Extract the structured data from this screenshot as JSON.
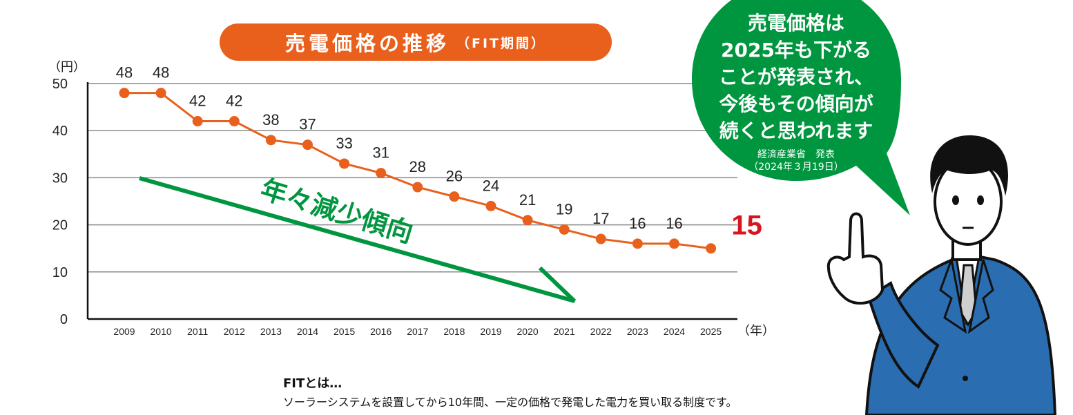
{
  "header": {
    "title": "売電価格の推移",
    "subtitle": "（FIT期間）"
  },
  "chart_data": {
    "type": "line",
    "title": "売電価格の推移（FIT期間）",
    "ylabel": "（円）",
    "xlabel": "（年）",
    "ylim": [
      0,
      50
    ],
    "yticks": [
      "0",
      "10",
      "20",
      "30",
      "40",
      "50"
    ],
    "categories": [
      "2009",
      "2010",
      "2011",
      "2012",
      "2013",
      "2014",
      "2015",
      "2016",
      "2017",
      "2018",
      "2019",
      "2020",
      "2021",
      "2022",
      "2023",
      "2024",
      "2025"
    ],
    "series": [
      {
        "values": [
          48,
          48,
          42,
          42,
          38,
          37,
          33,
          31,
          28,
          26,
          24,
          21,
          19,
          17,
          16,
          16,
          15
        ],
        "color": "#e8601c"
      }
    ],
    "data_labels": [
      "48",
      "48",
      "42",
      "42",
      "38",
      "37",
      "33",
      "31",
      "28",
      "26",
      "24",
      "21",
      "19",
      "17",
      "16",
      "16",
      "15"
    ],
    "highlight_color": "#d9141e",
    "grid": true,
    "annotation": {
      "text": "年々減少傾向",
      "color": "#00963f"
    }
  },
  "bubble": {
    "lines": [
      "売電価格は",
      "2025年も下がる",
      "ことが発表され、",
      "今後もその傾向が",
      "続くと思われます"
    ],
    "source_line1": "経済産業省　発表",
    "source_line2": "（2024年３月19日）",
    "color": "#00963f"
  },
  "note": {
    "heading": "FITとは…",
    "body": "ソーラーシステムを設置してから10年間、一定の価格で発電した電力を買い取る制度です。"
  },
  "colors": {
    "accent": "#e8601c",
    "green": "#00963f",
    "red": "#d9141e",
    "suit": "#2a6db0"
  }
}
